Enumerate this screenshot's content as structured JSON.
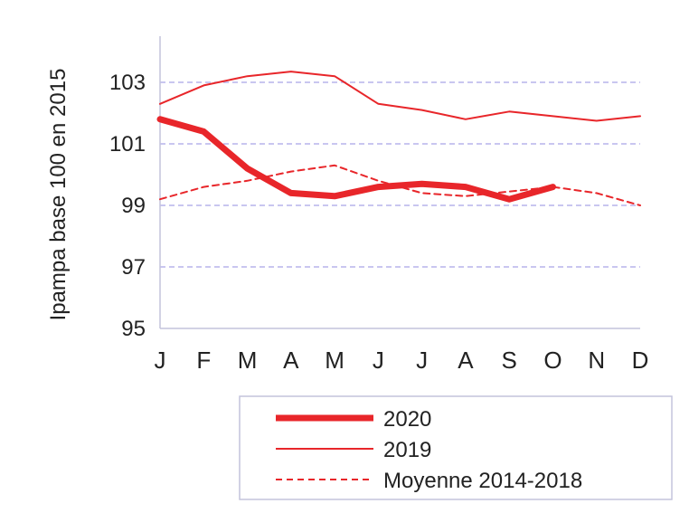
{
  "chart_data": {
    "type": "line",
    "title": "",
    "xlabel": "",
    "ylabel": "Ipampa base 100 en 2015",
    "categories": [
      "J",
      "F",
      "M",
      "A",
      "M",
      "J",
      "J",
      "A",
      "S",
      "O",
      "N",
      "D"
    ],
    "ylim": [
      95,
      104.5
    ],
    "yticks": [
      95,
      97,
      99,
      101,
      103
    ],
    "grid": true,
    "legend_position": "bottom",
    "series": [
      {
        "name": "2020",
        "style": "thick",
        "color": "#e8262a",
        "values": [
          101.8,
          101.4,
          100.2,
          99.4,
          99.3,
          99.6,
          99.7,
          99.6,
          99.2,
          99.6,
          null,
          null
        ]
      },
      {
        "name": "2019",
        "style": "solid",
        "color": "#e8262a",
        "values": [
          102.3,
          102.9,
          103.2,
          103.35,
          103.2,
          102.3,
          102.1,
          101.8,
          102.05,
          101.9,
          101.75,
          101.9
        ]
      },
      {
        "name": "Moyenne 2014-2018",
        "style": "dashed",
        "color": "#e8262a",
        "values": [
          99.2,
          99.6,
          99.8,
          100.1,
          100.3,
          99.8,
          99.4,
          99.3,
          99.45,
          99.6,
          99.4,
          99.0
        ]
      }
    ],
    "colors": {
      "grid": "#b7b4ec",
      "axis": "#c4c4dc",
      "legend_border": "#c4c4dc"
    }
  }
}
